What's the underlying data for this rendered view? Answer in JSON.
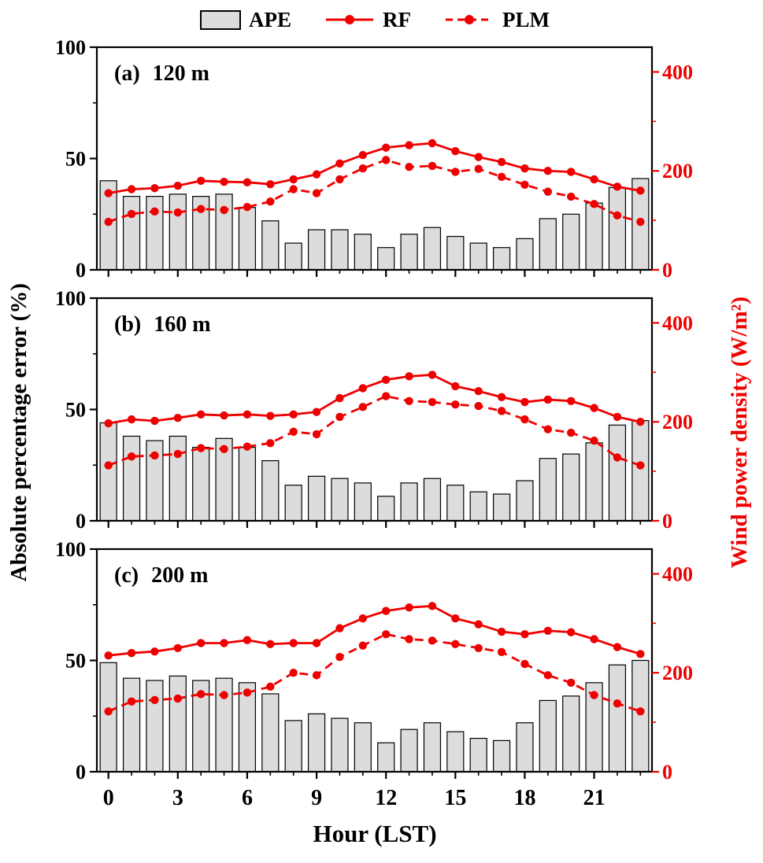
{
  "legend": {
    "items": [
      {
        "label": "APE",
        "swatch": "bar-swatch"
      },
      {
        "label": "RF",
        "swatch": "solid-line"
      },
      {
        "label": "PLM",
        "swatch": "dashed-line"
      }
    ]
  },
  "labels": {
    "left_axis": "Absolute percentage error (%)",
    "right_axis": "Wind power density (W/m²)",
    "x_axis": "Hour (LST)"
  },
  "colors": {
    "line": "#ee0000",
    "bar_fill": "#dcdcdc",
    "bar_stroke": "#000000",
    "axis": "#000000"
  },
  "axes": {
    "left": {
      "ticks": [
        0,
        50,
        100
      ],
      "minor": [
        25,
        75
      ],
      "max": 100
    },
    "right": {
      "ticks": [
        0,
        200,
        400
      ],
      "minor": [
        100,
        300
      ],
      "max": 450
    },
    "x": {
      "major": [
        0,
        3,
        6,
        9,
        12,
        15,
        18,
        21
      ],
      "hours": 24
    }
  },
  "chart_data": [
    {
      "type": "bar+line",
      "panel_tag": "(a)",
      "height_label": "120 m",
      "hours": [
        0,
        1,
        2,
        3,
        4,
        5,
        6,
        7,
        8,
        9,
        10,
        11,
        12,
        13,
        14,
        15,
        16,
        17,
        18,
        19,
        20,
        21,
        22,
        23
      ],
      "series": [
        {
          "name": "APE",
          "axis": "left",
          "values": [
            40,
            33,
            33,
            34,
            33,
            34,
            28,
            22,
            12,
            18,
            18,
            16,
            10,
            16,
            19,
            15,
            12,
            10,
            14,
            23,
            25,
            30,
            37,
            41
          ]
        },
        {
          "name": "RF",
          "axis": "right",
          "values": [
            155,
            163,
            165,
            170,
            180,
            178,
            177,
            173,
            183,
            193,
            215,
            232,
            247,
            252,
            256,
            240,
            228,
            218,
            205,
            200,
            198,
            183,
            168,
            160
          ]
        },
        {
          "name": "PLM",
          "axis": "right",
          "values": [
            97,
            113,
            118,
            116,
            123,
            121,
            127,
            138,
            163,
            155,
            183,
            205,
            222,
            208,
            210,
            198,
            204,
            188,
            172,
            158,
            148,
            133,
            110,
            97
          ]
        }
      ]
    },
    {
      "type": "bar+line",
      "panel_tag": "(b)",
      "height_label": "160 m",
      "hours": [
        0,
        1,
        2,
        3,
        4,
        5,
        6,
        7,
        8,
        9,
        10,
        11,
        12,
        13,
        14,
        15,
        16,
        17,
        18,
        19,
        20,
        21,
        22,
        23
      ],
      "series": [
        {
          "name": "APE",
          "axis": "left",
          "values": [
            44,
            38,
            36,
            38,
            33,
            37,
            33,
            27,
            16,
            20,
            19,
            17,
            11,
            17,
            19,
            16,
            13,
            12,
            18,
            28,
            30,
            35,
            43,
            45
          ]
        },
        {
          "name": "RF",
          "axis": "right",
          "values": [
            197,
            205,
            202,
            208,
            215,
            213,
            215,
            212,
            215,
            220,
            248,
            268,
            285,
            292,
            295,
            272,
            262,
            250,
            240,
            245,
            242,
            228,
            210,
            200
          ]
        },
        {
          "name": "PLM",
          "axis": "right",
          "values": [
            112,
            130,
            132,
            135,
            147,
            145,
            150,
            157,
            180,
            175,
            210,
            230,
            252,
            242,
            240,
            235,
            232,
            222,
            205,
            185,
            178,
            162,
            128,
            112
          ]
        }
      ]
    },
    {
      "type": "bar+line",
      "panel_tag": "(c)",
      "height_label": "200 m",
      "hours": [
        0,
        1,
        2,
        3,
        4,
        5,
        6,
        7,
        8,
        9,
        10,
        11,
        12,
        13,
        14,
        15,
        16,
        17,
        18,
        19,
        20,
        21,
        22,
        23
      ],
      "series": [
        {
          "name": "APE",
          "axis": "left",
          "values": [
            49,
            42,
            41,
            43,
            41,
            42,
            40,
            35,
            23,
            26,
            24,
            22,
            13,
            19,
            22,
            18,
            15,
            14,
            22,
            32,
            34,
            40,
            48,
            50
          ]
        },
        {
          "name": "RF",
          "axis": "right",
          "values": [
            235,
            240,
            243,
            250,
            260,
            260,
            266,
            258,
            260,
            260,
            290,
            310,
            325,
            332,
            335,
            310,
            298,
            283,
            278,
            285,
            282,
            268,
            252,
            238
          ]
        },
        {
          "name": "PLM",
          "axis": "right",
          "values": [
            122,
            142,
            145,
            148,
            157,
            155,
            160,
            172,
            200,
            195,
            232,
            255,
            278,
            268,
            265,
            258,
            250,
            242,
            218,
            195,
            180,
            155,
            138,
            122
          ]
        }
      ]
    }
  ]
}
